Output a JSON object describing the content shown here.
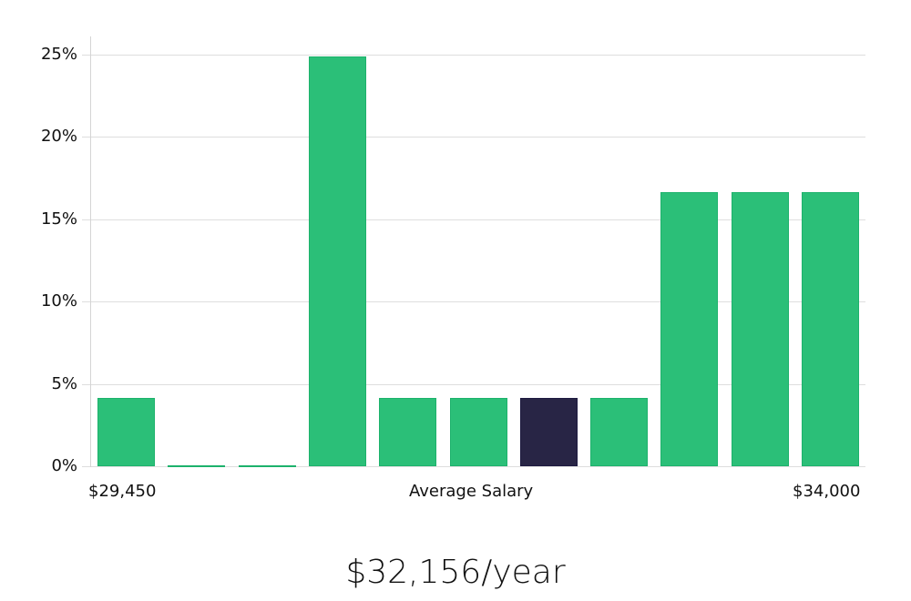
{
  "chart_data": {
    "type": "bar",
    "title": "",
    "xlabel": "Average Salary",
    "ylabel": "",
    "x_range_labels": {
      "min": "$29,450",
      "max": "$34,000"
    },
    "categories": [
      "bin1",
      "bin2",
      "bin3",
      "bin4",
      "bin5",
      "bin6",
      "bin7",
      "bin8",
      "bin9",
      "bin10",
      "bin11"
    ],
    "values": [
      4.17,
      0,
      0,
      24.9,
      4.17,
      4.17,
      4.17,
      4.17,
      16.67,
      16.67,
      16.67
    ],
    "highlight_index": 6,
    "ylim": [
      0,
      26
    ],
    "yticks": [
      0,
      5,
      10,
      15,
      20,
      25
    ],
    "ytick_labels": [
      "0%",
      "5%",
      "10%",
      "15%",
      "20%",
      "25%"
    ],
    "grid": true,
    "legend": null,
    "colors": {
      "bar": "#2bbf78",
      "highlight": "#282545",
      "grid": "#dedede"
    }
  },
  "summary": {
    "salary_text": "$32,156/year"
  }
}
